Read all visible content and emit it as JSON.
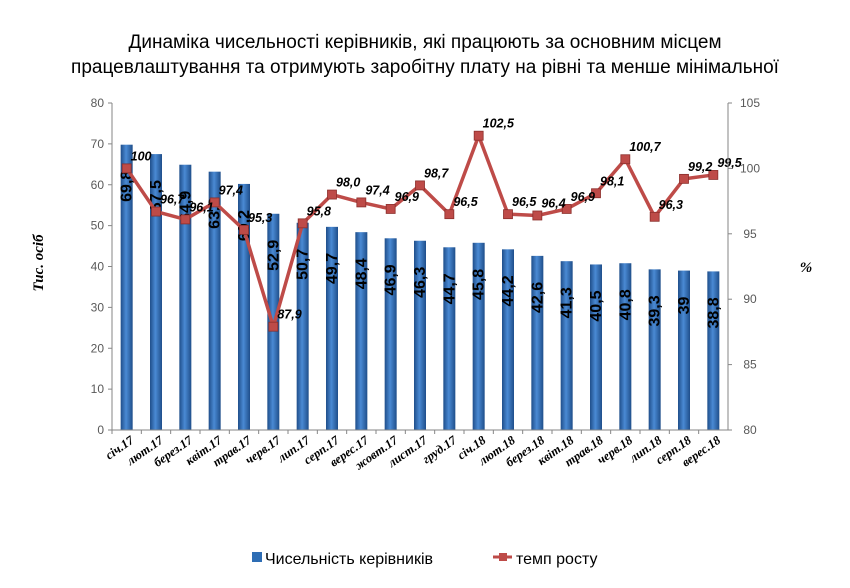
{
  "chart_data": {
    "type": "bar",
    "title_lines": [
      "Динаміка чисельності керівників, які працюють за основним місцем",
      "працевлаштування та отримують заробітну плату на рівні та менше мінімальної"
    ],
    "categories": [
      "січ.17",
      "лют.17",
      "берез.17",
      "квіт.17",
      "трав.17",
      "черв.17",
      "лип.17",
      "серп.17",
      "верес.17",
      "жовт.17",
      "лист.17",
      "груд.17",
      "січ.18",
      "лют.18",
      "берез.18",
      "квіт.18",
      "трав.18",
      "черв.18",
      "лип.18",
      "серп.18",
      "верес.18"
    ],
    "ylabel": "Тис. осіб",
    "y2label": "%",
    "ylim": [
      0,
      80
    ],
    "y2lim": [
      80,
      105
    ],
    "yticks": [
      "0",
      "10",
      "20",
      "30",
      "40",
      "50",
      "60",
      "70",
      "80"
    ],
    "y2ticks": [
      "80",
      "85",
      "90",
      "95",
      "100",
      "105"
    ],
    "series": [
      {
        "name": "Чисельність керівників",
        "type": "bar",
        "axis": "left",
        "color": "#2E6DB4",
        "values": [
          69.8,
          67.5,
          64.9,
          63.2,
          60.2,
          52.9,
          50.7,
          49.7,
          48.4,
          46.9,
          46.3,
          44.7,
          45.8,
          44.2,
          42.6,
          41.3,
          40.5,
          40.8,
          39.3,
          39,
          38.8
        ],
        "labels": [
          "69,8",
          "67,5",
          "64,9",
          "63,2",
          "60,2",
          "52,9",
          "50,7",
          "49,7",
          "48,4",
          "46,9",
          "46,3",
          "44,7",
          "45,8",
          "44,2",
          "42,6",
          "41,3",
          "40,5",
          "40,8",
          "39,3",
          "39",
          "38,8"
        ]
      },
      {
        "name": "темп росту",
        "type": "line",
        "axis": "right",
        "color": "#BE4B48",
        "values": [
          100,
          96.7,
          96.1,
          97.4,
          95.3,
          87.9,
          95.8,
          98.0,
          97.4,
          96.9,
          98.7,
          96.5,
          102.5,
          96.5,
          96.4,
          96.9,
          98.1,
          100.7,
          96.3,
          99.2,
          99.5
        ],
        "labels": [
          "100",
          "96,7",
          "96,1",
          "97,4",
          "95,3",
          "87,9",
          "95,8",
          "98,0",
          "97,4",
          "96,9",
          "98,7",
          "96,5",
          "102,5",
          "96,5",
          "96,4",
          "96,9",
          "98,1",
          "100,7",
          "96,3",
          "99,2",
          "99,5"
        ]
      }
    ],
    "legend": "bottom"
  }
}
